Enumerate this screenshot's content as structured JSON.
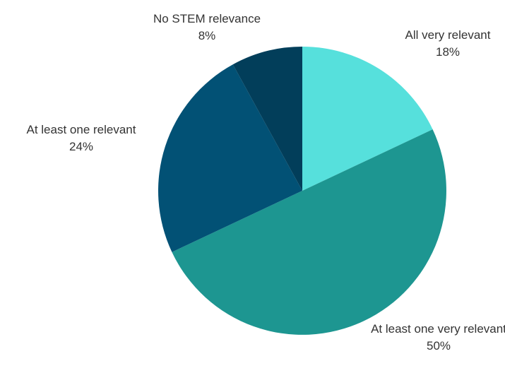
{
  "chart_data": {
    "type": "pie",
    "title": "",
    "start_angle_deg": 0,
    "direction": "clockwise",
    "slices": [
      {
        "label": "All very relevant",
        "value": 18,
        "value_label": "18%",
        "color": "#56E0DC"
      },
      {
        "label": "At least one very relevant",
        "value": 50,
        "value_label": "50%",
        "color": "#1D9691"
      },
      {
        "label": "At least one relevant",
        "value": 24,
        "value_label": "24%",
        "color": "#025175"
      },
      {
        "label": "No STEM relevance",
        "value": 8,
        "value_label": "8%",
        "color": "#023E5A"
      }
    ],
    "legend": "none",
    "data_labels": "outside"
  }
}
